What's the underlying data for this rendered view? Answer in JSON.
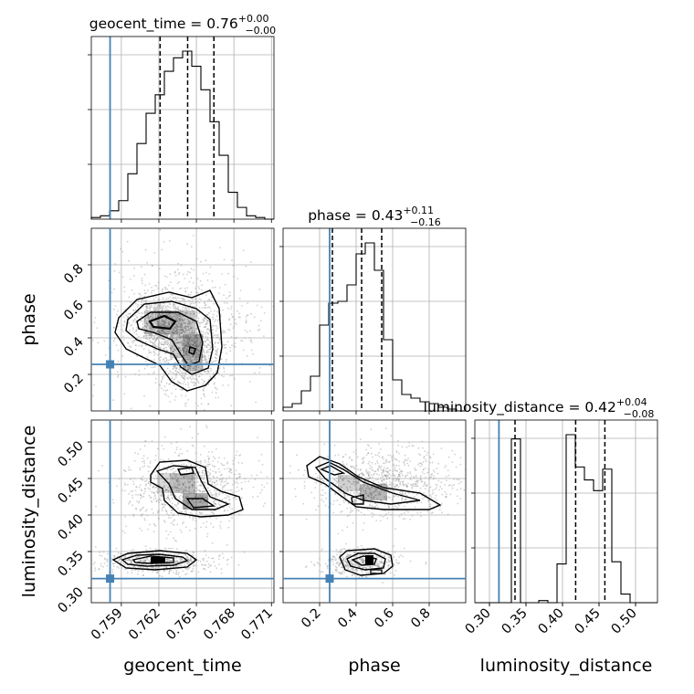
{
  "chart_data": {
    "type": "corner",
    "parameters": [
      "geocent_time",
      "phase",
      "luminosity_distance"
    ],
    "titles": [
      {
        "name": "geocent_time",
        "median": "0.76",
        "plus": "+0.00",
        "minus": "−0.00"
      },
      {
        "name": "phase",
        "median": "0.43",
        "plus": "+0.11",
        "minus": "−0.16"
      },
      {
        "name": "luminosity_distance",
        "median": "0.42",
        "plus": "+0.04",
        "minus": "−0.08"
      }
    ],
    "axis_labels": [
      "geocent_time",
      "phase",
      "luminosity_distance"
    ],
    "ranges": [
      [
        0.7566,
        0.7712
      ],
      [
        0.0,
        1.0
      ],
      [
        0.28,
        0.53
      ]
    ],
    "ticks": {
      "geocent_time": [
        0.759,
        0.762,
        0.765,
        0.768,
        0.771
      ],
      "phase": [
        0.2,
        0.4,
        0.6,
        0.8
      ],
      "luminosity_distance": [
        0.3,
        0.35,
        0.4,
        0.45,
        0.5
      ]
    },
    "tick_labels": {
      "geocent_time": [
        "0.759",
        "0.762",
        "0.765",
        "0.768",
        "0.771"
      ],
      "phase": [
        "0.2",
        "0.4",
        "0.6",
        "0.8"
      ],
      "luminosity_distance": [
        "0.30",
        "0.35",
        "0.40",
        "0.45",
        "0.50"
      ]
    },
    "truths": [
      0.7581,
      0.255,
      0.313
    ],
    "quantiles": [
      [
        0.7621,
        0.7643,
        0.7664
      ],
      [
        0.27,
        0.43,
        0.54
      ],
      [
        0.335,
        0.418,
        0.458
      ]
    ],
    "histograms": [
      {
        "bin_edges_start": 0.7566,
        "bin_width": 0.00073,
        "counts": [
          1,
          2,
          5,
          11,
          27,
          45,
          63,
          74,
          88,
          96,
          100,
          91,
          77,
          58,
          38,
          16,
          7,
          2,
          1,
          0
        ]
      },
      {
        "bin_edges_start": 0.0,
        "bin_width": 0.05,
        "counts": [
          2,
          4,
          11,
          19,
          47,
          59,
          60,
          69,
          86,
          92,
          77,
          39,
          17,
          9,
          7,
          5,
          4,
          2,
          1,
          0
        ]
      },
      {
        "bin_edges_start": 0.28,
        "bin_width": 0.0125,
        "counts": [
          0,
          0,
          0,
          0,
          76,
          0,
          0,
          1,
          0,
          18,
          78,
          63,
          57,
          52,
          62,
          19,
          4,
          0,
          0,
          0
        ]
      }
    ],
    "colors": {
      "truth": "#4682b4",
      "line": "#000000",
      "grid": "#b0b0b0",
      "points": "#9a9a9a"
    },
    "grid": true
  }
}
